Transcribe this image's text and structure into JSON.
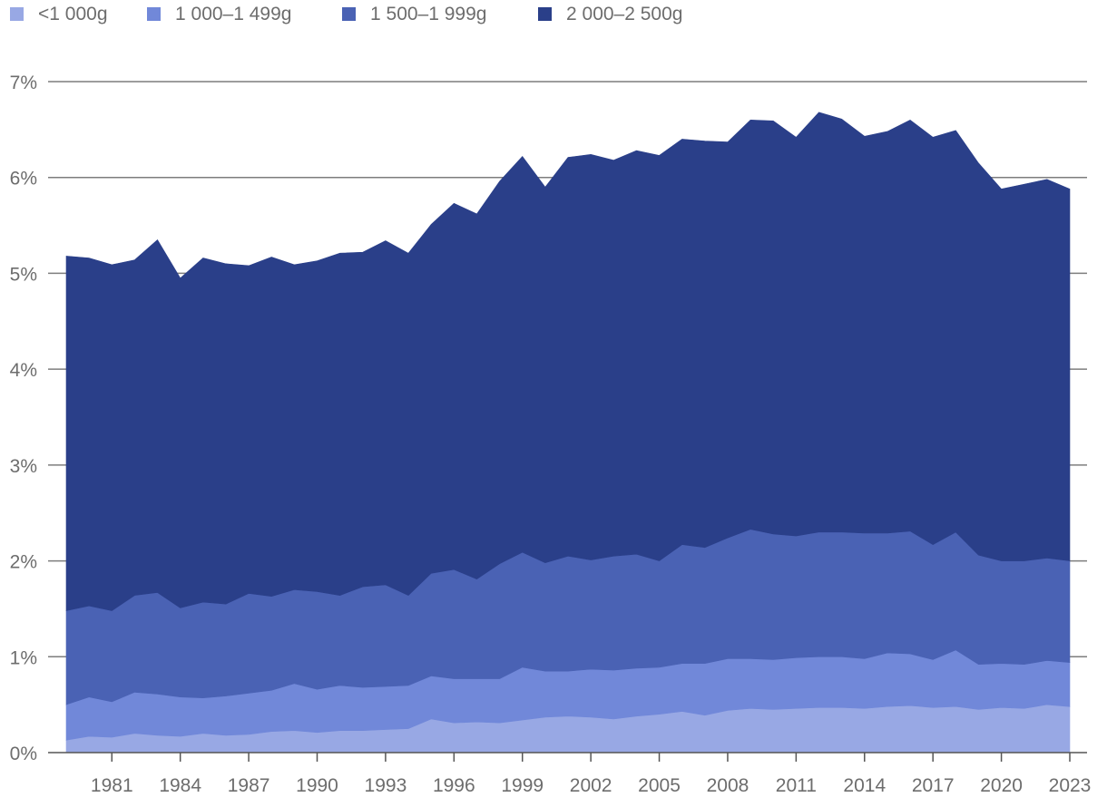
{
  "chart_data": {
    "type": "area",
    "stacked": true,
    "x": [
      1979,
      1980,
      1981,
      1982,
      1983,
      1984,
      1985,
      1986,
      1987,
      1988,
      1989,
      1990,
      1991,
      1992,
      1993,
      1994,
      1995,
      1996,
      1997,
      1998,
      1999,
      2000,
      2001,
      2002,
      2003,
      2004,
      2005,
      2006,
      2007,
      2008,
      2009,
      2010,
      2011,
      2012,
      2013,
      2014,
      2015,
      2016,
      2017,
      2018,
      2019,
      2020,
      2021,
      2022,
      2023
    ],
    "x_ticks": [
      1981,
      1984,
      1987,
      1990,
      1993,
      1996,
      1999,
      2002,
      2005,
      2008,
      2011,
      2014,
      2017,
      2020,
      2023
    ],
    "ylim": [
      0,
      7
    ],
    "y_ticks": [
      0,
      1,
      2,
      3,
      4,
      5,
      6,
      7
    ],
    "y_tick_suffix": "%",
    "grid": true,
    "legend_position": "top-left",
    "series": [
      {
        "name": "<1 000g",
        "color": "#98a8e4",
        "values": [
          0.13,
          0.17,
          0.16,
          0.2,
          0.18,
          0.17,
          0.2,
          0.18,
          0.19,
          0.22,
          0.23,
          0.21,
          0.23,
          0.23,
          0.24,
          0.25,
          0.35,
          0.31,
          0.32,
          0.31,
          0.34,
          0.37,
          0.38,
          0.37,
          0.35,
          0.38,
          0.4,
          0.43,
          0.39,
          0.44,
          0.46,
          0.45,
          0.46,
          0.47,
          0.47,
          0.46,
          0.48,
          0.49,
          0.47,
          0.48,
          0.45,
          0.47,
          0.46,
          0.5,
          0.48
        ]
      },
      {
        "name": "1 000–1 499g",
        "color": "#7188d9",
        "values": [
          0.37,
          0.41,
          0.37,
          0.43,
          0.43,
          0.41,
          0.37,
          0.41,
          0.43,
          0.43,
          0.49,
          0.45,
          0.47,
          0.45,
          0.45,
          0.45,
          0.45,
          0.46,
          0.45,
          0.46,
          0.55,
          0.48,
          0.47,
          0.5,
          0.51,
          0.5,
          0.49,
          0.5,
          0.54,
          0.54,
          0.52,
          0.52,
          0.53,
          0.53,
          0.53,
          0.52,
          0.56,
          0.54,
          0.5,
          0.59,
          0.47,
          0.46,
          0.46,
          0.46,
          0.46
        ]
      },
      {
        "name": "1 500–1 999g",
        "color": "#4a62b4",
        "values": [
          0.98,
          0.95,
          0.95,
          1.01,
          1.06,
          0.93,
          1.0,
          0.96,
          1.04,
          0.98,
          0.98,
          1.02,
          0.94,
          1.05,
          1.06,
          0.94,
          1.07,
          1.14,
          1.04,
          1.2,
          1.2,
          1.13,
          1.2,
          1.14,
          1.19,
          1.19,
          1.11,
          1.24,
          1.21,
          1.26,
          1.35,
          1.31,
          1.27,
          1.3,
          1.3,
          1.31,
          1.25,
          1.28,
          1.2,
          1.23,
          1.14,
          1.07,
          1.08,
          1.07,
          1.06
        ]
      },
      {
        "name": "2 000–2 500g",
        "color": "#2a3f89",
        "values": [
          3.7,
          3.63,
          3.61,
          3.5,
          3.68,
          3.44,
          3.59,
          3.55,
          3.42,
          3.54,
          3.39,
          3.45,
          3.57,
          3.49,
          3.59,
          3.57,
          3.64,
          3.82,
          3.81,
          3.99,
          4.13,
          3.92,
          4.16,
          4.23,
          4.13,
          4.21,
          4.23,
          4.23,
          4.24,
          4.13,
          4.27,
          4.31,
          4.16,
          4.38,
          4.31,
          4.14,
          4.19,
          4.29,
          4.25,
          4.19,
          4.09,
          3.88,
          3.93,
          3.95,
          3.88
        ]
      }
    ]
  }
}
